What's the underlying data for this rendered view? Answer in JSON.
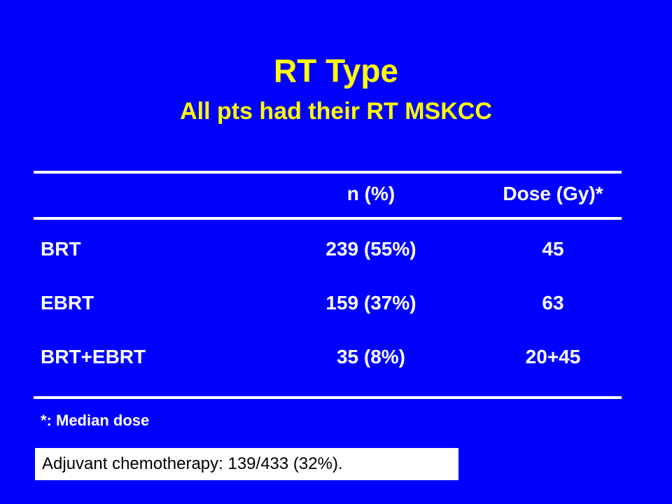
{
  "header": {
    "title": "RT Type",
    "subtitle": "All pts had their RT MSKCC"
  },
  "table": {
    "columns": [
      "",
      "n (%)",
      "Dose (Gy)*"
    ],
    "rows": [
      [
        "BRT",
        "239 (55%)",
        "45"
      ],
      [
        "EBRT",
        "159 (37%)",
        "63"
      ],
      [
        "BRT+EBRT",
        "35 (8%)",
        "20+45"
      ]
    ]
  },
  "note": "*: Median dose",
  "footer": "Adjuvant  chemotherapy: 139/433 (32%)."
}
